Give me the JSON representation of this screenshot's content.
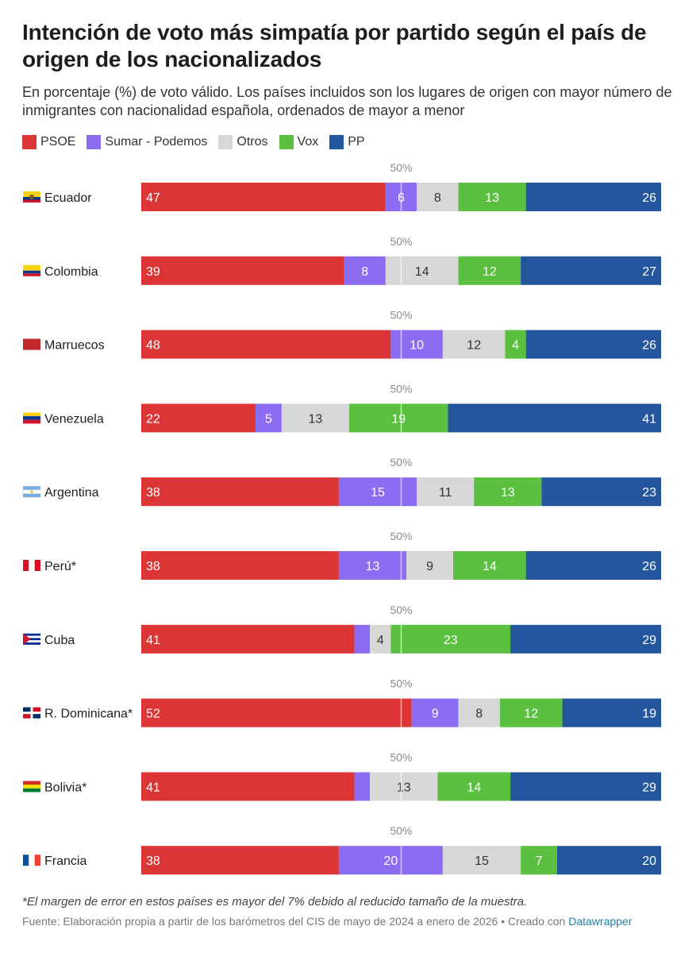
{
  "header": {
    "title": "Intención de voto más simpatía por partido según el país de origen de los nacionalizados",
    "subtitle": "En porcentaje (%) de voto válido. Los países incluidos son los lugares de origen con mayor número de inmigrantes con nacionalidad española, ordenados de mayor a menor"
  },
  "legend": [
    {
      "label": "PSOE",
      "color": "#dc3535"
    },
    {
      "label": "Sumar - Podemos",
      "color": "#8c6cf0"
    },
    {
      "label": "Otros",
      "color": "#d7d7d7"
    },
    {
      "label": "Vox",
      "color": "#5bbf3f"
    },
    {
      "label": "PP",
      "color": "#24569e"
    }
  ],
  "chart_data": {
    "type": "bar",
    "orientation": "horizontal",
    "stacked": true,
    "reference_line": {
      "value": 50,
      "label": "50%"
    },
    "xlim": [
      0,
      100
    ],
    "series_names": [
      "PSOE",
      "Sumar - Podemos",
      "Otros",
      "Vox",
      "PP"
    ],
    "series_colors": [
      "#dc3535",
      "#8c6cf0",
      "#d7d7d7",
      "#5bbf3f",
      "#24569e"
    ],
    "rows": [
      {
        "country": "Ecuador",
        "flag": "ecuador-flag",
        "values": [
          47,
          6,
          8,
          13,
          26
        ],
        "labels": [
          "47",
          "6",
          "8",
          "13",
          "26"
        ]
      },
      {
        "country": "Colombia",
        "flag": "colombia-flag",
        "values": [
          39,
          8,
          14,
          12,
          27
        ],
        "labels": [
          "39",
          "8",
          "14",
          "12",
          "27"
        ]
      },
      {
        "country": "Marruecos",
        "flag": "morocco-flag",
        "values": [
          48,
          10,
          12,
          4,
          26
        ],
        "labels": [
          "48",
          "10",
          "12",
          "4",
          "26"
        ]
      },
      {
        "country": "Venezuela",
        "flag": "venezuela-flag",
        "values": [
          22,
          5,
          13,
          19,
          41
        ],
        "labels": [
          "22",
          "5",
          "13",
          "19",
          "41"
        ]
      },
      {
        "country": "Argentina",
        "flag": "argentina-flag",
        "values": [
          38,
          15,
          11,
          13,
          23
        ],
        "labels": [
          "38",
          "15",
          "11",
          "13",
          "23"
        ]
      },
      {
        "country": "Perú*",
        "flag": "peru-flag",
        "values": [
          38,
          13,
          9,
          14,
          26
        ],
        "labels": [
          "38",
          "13",
          "9",
          "14",
          "26"
        ]
      },
      {
        "country": "Cuba",
        "flag": "cuba-flag",
        "values": [
          41,
          3,
          4,
          23,
          29
        ],
        "labels": [
          "41",
          "",
          "4",
          "23",
          "29"
        ]
      },
      {
        "country": "R. Dominicana*",
        "flag": "dominican-republic-flag",
        "values": [
          52,
          9,
          8,
          12,
          19
        ],
        "labels": [
          "52",
          "9",
          "8",
          "12",
          "19"
        ]
      },
      {
        "country": "Bolivia*",
        "flag": "bolivia-flag",
        "values": [
          41,
          3,
          13,
          14,
          29
        ],
        "labels": [
          "41",
          "",
          "13",
          "14",
          "29"
        ]
      },
      {
        "country": "Francia",
        "flag": "france-flag",
        "values": [
          38,
          20,
          15,
          7,
          20
        ],
        "labels": [
          "38",
          "20",
          "15",
          "7",
          "20"
        ]
      }
    ]
  },
  "footer": {
    "note": "*El margen de error en estos países es mayor del 7% debido al reducido tamaño de la muestra.",
    "source_prefix": "Fuente: Elaboración propia a partir de los barómetros del CIS de mayo de 2024 a enero de 2026 • Creado con ",
    "source_link": "Datawrapper"
  }
}
